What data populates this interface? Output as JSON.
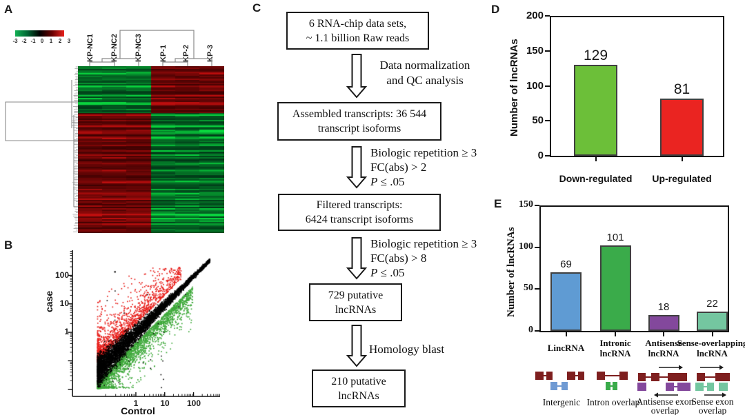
{
  "panels": {
    "a": "A",
    "b": "B",
    "c": "C",
    "d": "D",
    "e": "E"
  },
  "colors": {
    "gene": "#7e1f1f",
    "lnc_blue": "#6f9ad3",
    "lnc_green": "#3aab4a",
    "lnc_purple": "#83489c",
    "lnc_teal": "#74c6a0",
    "bar_stroke": "#3f3f3f",
    "dendrogram": "#8a8a8a"
  },
  "chart_data": [
    {
      "id": "D",
      "type": "bar",
      "ylabel": "Number of lncRNAs",
      "ylim": [
        0,
        200
      ],
      "yticks": [
        0,
        50,
        100,
        150,
        200
      ],
      "categories": [
        "Down-regulated",
        "Up-regulated"
      ],
      "values": [
        129,
        81
      ],
      "value_labels": [
        "129",
        "81"
      ],
      "colors": [
        "#6cbf39",
        "#ea2421"
      ],
      "legend": "none",
      "grid": false
    },
    {
      "id": "E",
      "type": "bar",
      "ylabel": "Number of lncRNAs",
      "ylim": [
        0,
        150
      ],
      "yticks": [
        0,
        50,
        100,
        150
      ],
      "categories": [
        "LincRNA",
        "Intronic\nlncRNA",
        "Antisense\nlncRNA",
        "Sense-overlapping\nlncRNA"
      ],
      "values": [
        69,
        101,
        18,
        22
      ],
      "value_labels": [
        "69",
        "101",
        "18",
        "22"
      ],
      "colors": [
        "#5f9bd3",
        "#3aab4a",
        "#83489c",
        "#74c6a0"
      ],
      "legend": "none",
      "grid": false
    },
    {
      "id": "B",
      "type": "scatter",
      "xlabel": "Control",
      "ylabel": "case",
      "xscale": "log",
      "yscale": "log",
      "x_ticks": [
        "1",
        "10",
        "100"
      ],
      "y_ticks": [
        "1",
        "10",
        "100"
      ],
      "series": [
        {
          "name": "up in case (above diagonal)",
          "color": "#e8211d",
          "n": 1500
        },
        {
          "name": "down in case (below diagonal)",
          "color": "#3fa93b",
          "n": 2600
        },
        {
          "name": "unchanged (diagonal band)",
          "color": "#000000",
          "n": 6000
        }
      ],
      "gen": {
        "seed": 7,
        "log_x_min": -1.35,
        "log_x_max": 2.55,
        "log_y_floor": -1.95,
        "log_y_cap": 2.3,
        "band_halfwidth": 0.45,
        "fold_offset_min": 0.33
      }
    },
    {
      "id": "A",
      "type": "heatmap",
      "columns": [
        "KP-NC1",
        "KP-NC2",
        "KP-NC3",
        "KP-1",
        "KP-2",
        "KP-3"
      ],
      "colorscale": {
        "min": -3,
        "max": 3,
        "ticks": [
          "-3",
          "-2",
          "-1",
          "0",
          "1",
          "2",
          "3"
        ],
        "low": "#00a651",
        "mid": "#000000",
        "high": "#ed1c24"
      },
      "row_blocks": [
        {
          "fraction": 0.275,
          "KP-NC": "low (green)",
          "KP": "high (red)"
        },
        {
          "fraction": 0.725,
          "KP-NC": "high (red)",
          "KP": "low (green)"
        }
      ],
      "gen": {
        "seed": 11,
        "rows": 121
      }
    }
  ],
  "panelC": {
    "boxes": [
      {
        "lines": [
          "6 RNA-chip data sets,",
          "~ 1.1 billion Raw reads"
        ]
      },
      {
        "lines": [
          "Assembled transcripts: 36 544",
          "transcript isoforms"
        ]
      },
      {
        "lines": [
          "Filtered transcripts:",
          "6424 transcript isoforms"
        ]
      },
      {
        "lines": [
          "729 putative",
          "lncRNAs"
        ]
      },
      {
        "lines": [
          "210 putative",
          "lncRNAs"
        ]
      }
    ],
    "arrows": [
      {
        "lines": [
          "Data normalization",
          "and QC analysis"
        ]
      },
      {
        "lines": [
          "Biologic repetition ≥ 3",
          "FC(abs) > 2"
        ],
        "p_italic": "P",
        "p_rest": " ≤ .05"
      },
      {
        "lines": [
          "Biologic repetition ≥ 3",
          "FC(abs) > 8"
        ],
        "p_italic": "P",
        "p_rest": " ≤ .05"
      },
      {
        "lines": [
          "Homology blast"
        ]
      }
    ]
  },
  "diagrams": {
    "items": [
      {
        "label": "Intergenic"
      },
      {
        "label": "Intron overlap"
      },
      {
        "label": "Antisense exon\noverlap"
      },
      {
        "label": "Sense exon\noverlap"
      }
    ]
  }
}
